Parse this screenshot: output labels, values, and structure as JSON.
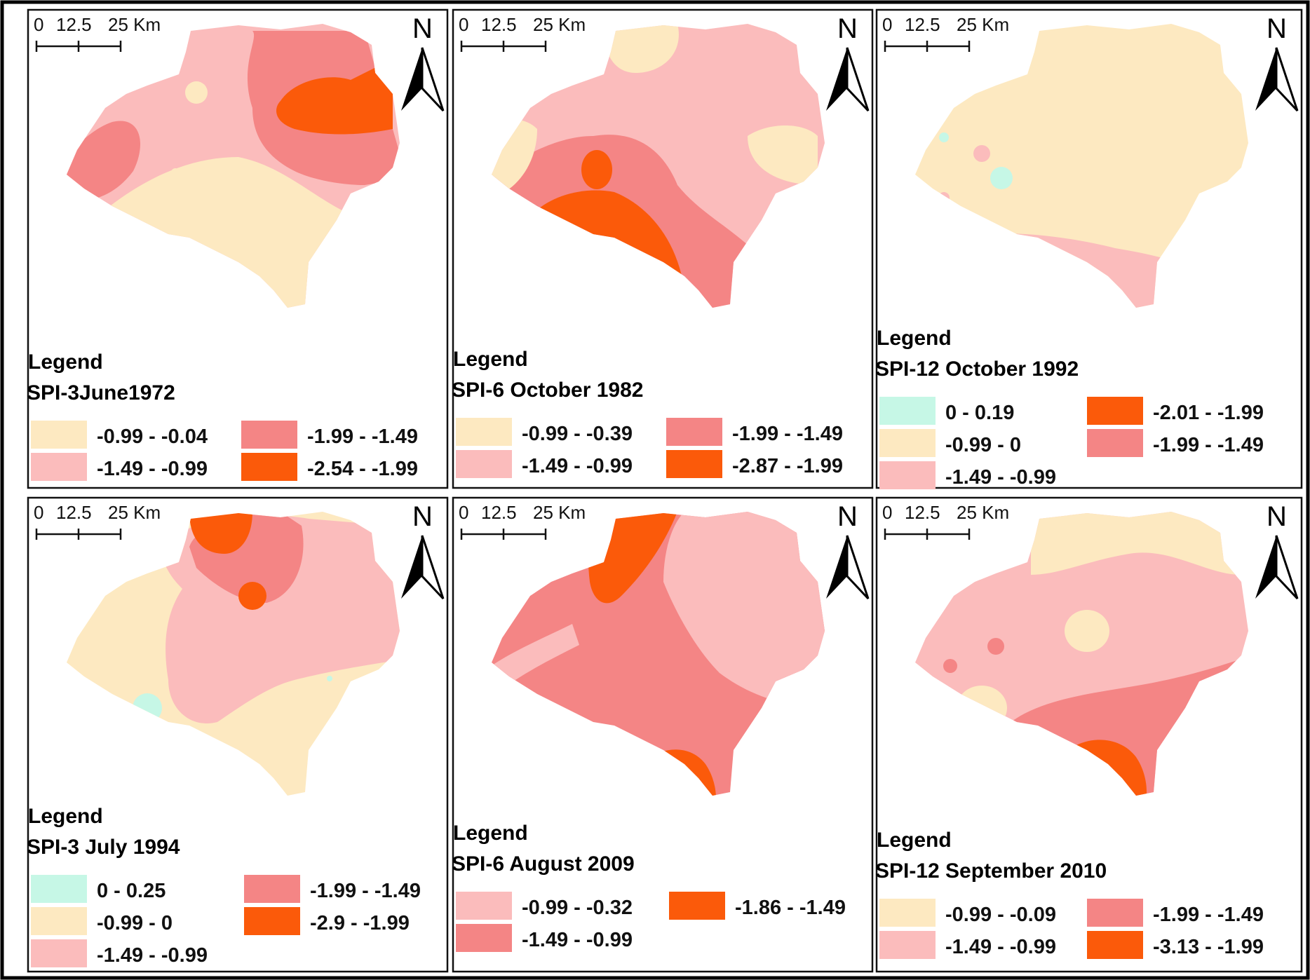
{
  "colors": {
    "class_pale": "#fde9c1",
    "class_pink": "#fbbcbc",
    "class_salmon": "#f48585",
    "class_orange": "#fb5a0a",
    "class_cyan": "#c6f7e6"
  },
  "scale_bar": {
    "zero": "0",
    "mid": "12.5",
    "end": "25 Km"
  },
  "north_label": "N",
  "legend_title": "Legend",
  "panels": [
    {
      "subtitle": "SPI-3June1972",
      "legend": [
        {
          "label": "-0.99 - -0.04",
          "color": "class_pale"
        },
        {
          "label": "-1.49 - -0.99",
          "color": "class_pink"
        },
        {
          "label": "-1.99 - -1.49",
          "color": "class_salmon"
        },
        {
          "label": "-2.54 - -1.99",
          "color": "class_orange"
        }
      ]
    },
    {
      "subtitle": "SPI-6 October 1982",
      "legend": [
        {
          "label": "-0.99 - -0.39",
          "color": "class_pale"
        },
        {
          "label": "-1.49 - -0.99",
          "color": "class_pink"
        },
        {
          "label": "-1.99 - -1.49",
          "color": "class_salmon"
        },
        {
          "label": "-2.87 - -1.99",
          "color": "class_orange"
        }
      ]
    },
    {
      "subtitle": "SPI-12 October 1992",
      "legend": [
        {
          "label": "0 - 0.19",
          "color": "class_cyan"
        },
        {
          "label": "-0.99 - 0",
          "color": "class_pale"
        },
        {
          "label": "-1.49 - -0.99",
          "color": "class_pink"
        },
        {
          "label": "-2.01 - -1.99",
          "color": "class_orange"
        },
        {
          "label": "-1.99 - -1.49",
          "color": "class_salmon"
        }
      ]
    },
    {
      "subtitle": "SPI-3 July 1994",
      "legend": [
        {
          "label": "0 - 0.25",
          "color": "class_cyan"
        },
        {
          "label": "-0.99 - 0",
          "color": "class_pale"
        },
        {
          "label": "-1.49 - -0.99",
          "color": "class_pink"
        },
        {
          "label": "-1.99 - -1.49",
          "color": "class_salmon"
        },
        {
          "label": "-2.9 - -1.99",
          "color": "class_orange"
        }
      ]
    },
    {
      "subtitle": "SPI-6 August 2009",
      "legend": [
        {
          "label": "-0.99 - -0.32",
          "color": "class_pink"
        },
        {
          "label": "-1.49 - -0.99",
          "color": "class_salmon"
        },
        {
          "label": "-1.86 - -1.49",
          "color": "class_orange"
        }
      ]
    },
    {
      "subtitle": "SPI-12 September 2010",
      "legend": [
        {
          "label": "-0.99 - -0.09",
          "color": "class_pale"
        },
        {
          "label": "-1.49 - -0.99",
          "color": "class_pink"
        },
        {
          "label": "-1.99 - -1.49",
          "color": "class_salmon"
        },
        {
          "label": "-3.13 - -1.99",
          "color": "class_orange"
        }
      ]
    }
  ]
}
